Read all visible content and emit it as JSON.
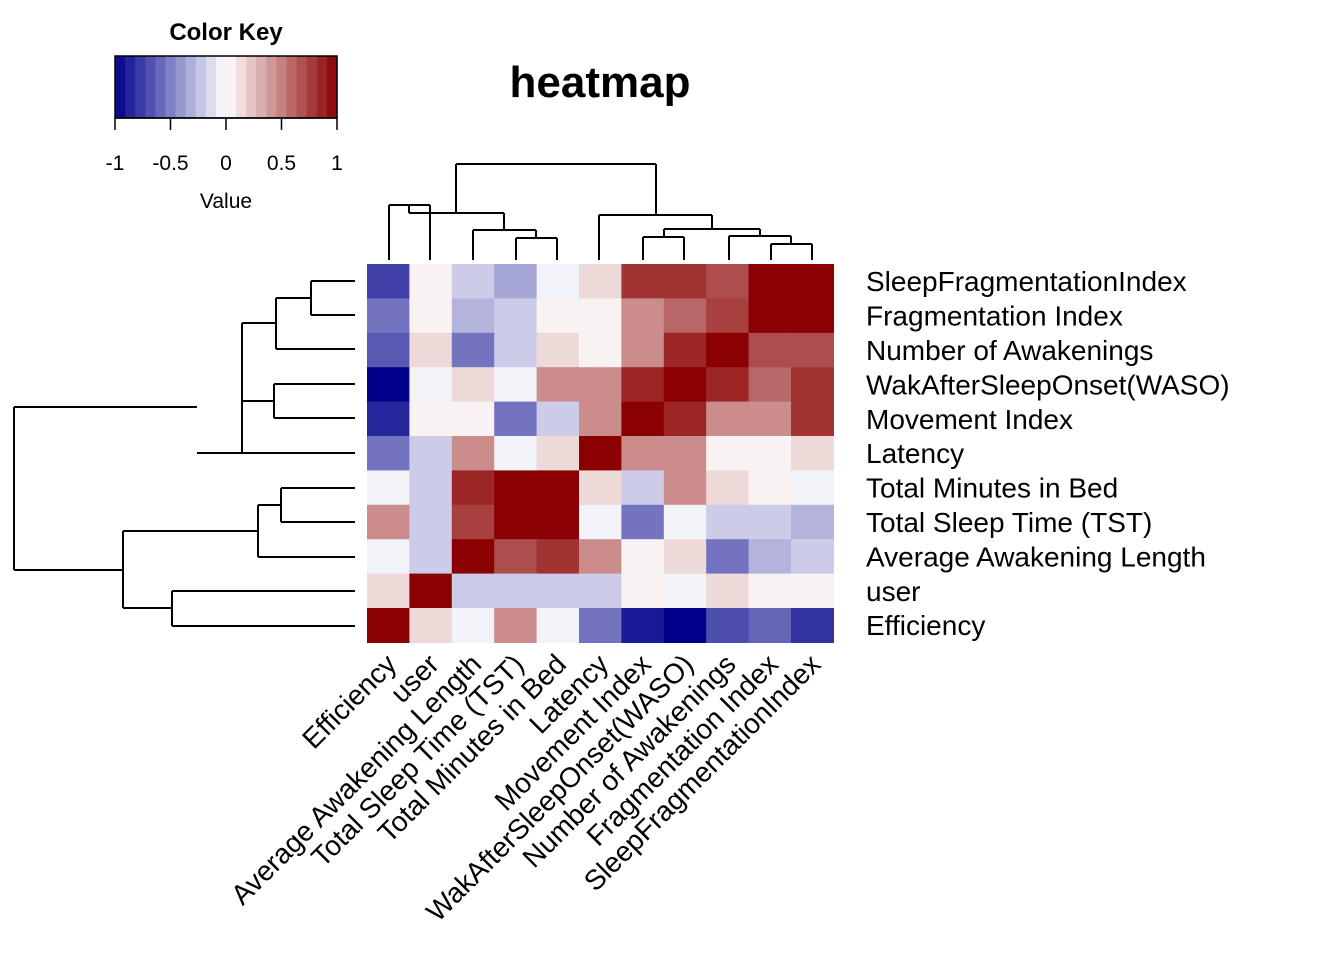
{
  "chart_data": {
    "type": "heatmap",
    "title": "heatmap",
    "column_labels": [
      "Efficiency",
      "user",
      "Average Awakening Length",
      "Total Sleep Time (TST)",
      "Total Minutes in Bed",
      "Latency",
      "Movement Index",
      "WakAfterSleepOnset(WASO)",
      "Number of Awakenings",
      "Fragmentation Index",
      "SleepFragmentationIndex"
    ],
    "row_labels": [
      "SleepFragmentationIndex",
      "Fragmentation Index",
      "Number of Awakenings",
      "WakAfterSleepOnset(WASO)",
      "Movement Index",
      "Latency",
      "Total Minutes in Bed",
      "Total Sleep Time (TST)",
      "Average Awakening Length",
      "user",
      "Efficiency"
    ],
    "values": [
      [
        -0.75,
        0.05,
        -0.2,
        -0.35,
        -0.05,
        0.15,
        0.8,
        0.8,
        0.7,
        1.0,
        1.0
      ],
      [
        -0.55,
        0.05,
        -0.3,
        -0.2,
        0.05,
        0.05,
        0.45,
        0.6,
        0.75,
        1.0,
        1.0
      ],
      [
        -0.65,
        0.15,
        -0.55,
        -0.2,
        0.15,
        0.05,
        0.45,
        0.85,
        1.0,
        0.7,
        0.7
      ],
      [
        -1.0,
        -0.05,
        0.15,
        -0.05,
        0.45,
        0.45,
        0.85,
        1.0,
        0.85,
        0.6,
        0.8
      ],
      [
        -0.85,
        0.05,
        0.05,
        -0.55,
        -0.2,
        0.45,
        1.0,
        0.85,
        0.45,
        0.45,
        0.8
      ],
      [
        -0.55,
        -0.2,
        0.45,
        -0.05,
        0.15,
        1.0,
        0.45,
        0.45,
        0.05,
        0.05,
        0.15
      ],
      [
        -0.05,
        -0.2,
        0.85,
        1.0,
        1.0,
        0.15,
        -0.2,
        0.45,
        0.15,
        0.05,
        -0.05
      ],
      [
        0.45,
        -0.2,
        0.75,
        1.0,
        1.0,
        -0.05,
        -0.55,
        -0.05,
        -0.2,
        -0.2,
        -0.3
      ],
      [
        -0.05,
        -0.2,
        1.0,
        0.7,
        0.8,
        0.45,
        0.05,
        0.15,
        -0.55,
        -0.3,
        -0.2
      ],
      [
        0.15,
        1.0,
        -0.2,
        -0.2,
        -0.2,
        -0.2,
        0.05,
        -0.05,
        0.15,
        0.05,
        0.05
      ],
      [
        1.0,
        0.15,
        -0.05,
        0.45,
        -0.05,
        -0.55,
        -0.9,
        -1.0,
        -0.7,
        -0.6,
        -0.8
      ]
    ],
    "color_key": {
      "title": "Color Key",
      "xlabel": "Value",
      "range": [
        -1,
        1
      ],
      "ticks": [
        "-1",
        "-0.5",
        "0",
        "0.5",
        "1"
      ],
      "low_color": "#00008b",
      "mid_color": "#ffffff",
      "high_color": "#8b0000"
    }
  }
}
